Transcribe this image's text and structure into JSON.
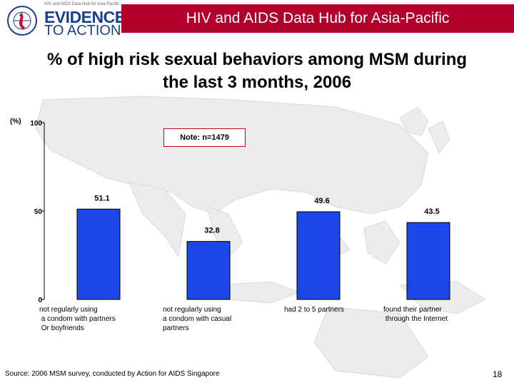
{
  "header": {
    "title": "HIV and AIDS Data Hub for Asia-Pacific",
    "logo_small_text": "HIV and AIDS Data Hub for Asia Pacific",
    "logo_line1": "EVIDENCE",
    "logo_line2": "TO ACTION",
    "accent_color": "#b0002a",
    "logo_color": "#1b3f8f"
  },
  "slide": {
    "title_line1": "% of high risk sexual behaviors among MSM during",
    "title_line2": "the last 3 months, 2006",
    "note": "Note: n=1479",
    "source": "Source: 2006 MSM survey, conducted by Action for AIDS Singapore",
    "page_number": "18"
  },
  "chart_data": {
    "type": "bar",
    "unit_label": "(%)",
    "categories": [
      "not regularly using\n a condom with partners\n Or boyfriends",
      "not regularly using\na condom with casual\npartners",
      "had 2 to 5 partners",
      "found their partner\n through the Internet"
    ],
    "values": [
      51.1,
      32.8,
      49.6,
      43.5
    ],
    "value_labels": [
      "51.1",
      "32.8",
      "49.6",
      "43.5"
    ],
    "yticks": [
      "0",
      "50",
      "100"
    ],
    "ylim": [
      0,
      100
    ],
    "bar_color": "#1c47e6",
    "grid": false
  }
}
